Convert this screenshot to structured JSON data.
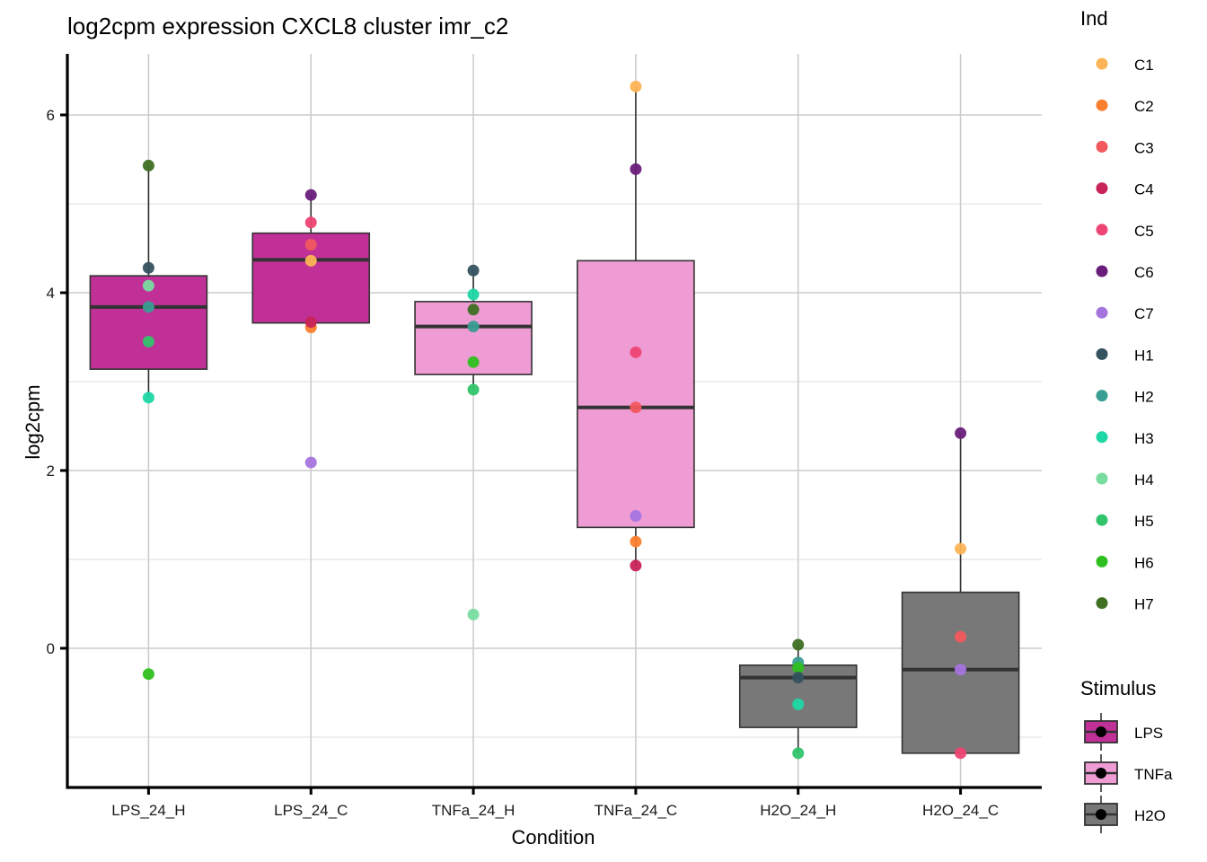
{
  "chart_data": {
    "type": "box",
    "title": "log2cpm expression CXCL8 cluster imr_c2",
    "xlabel": "Condition",
    "ylabel": "log2cpm",
    "ylim": [
      -1.55,
      6.7
    ],
    "yticks": [
      0,
      2,
      4,
      6
    ],
    "grid": true,
    "categories": [
      "LPS_24_H",
      "LPS_24_C",
      "TNFa_24_H",
      "TNFa_24_C",
      "H2O_24_H",
      "H2O_24_C"
    ],
    "boxes": [
      {
        "category": "LPS_24_H",
        "stimulus": "LPS",
        "whisker_low": 2.82,
        "q1": 3.14,
        "median": 3.84,
        "q3": 4.19,
        "whisker_high": 5.43
      },
      {
        "category": "LPS_24_C",
        "stimulus": "LPS",
        "whisker_low": 3.61,
        "q1": 3.66,
        "median": 4.37,
        "q3": 4.67,
        "whisker_high": 5.1
      },
      {
        "category": "TNFa_24_H",
        "stimulus": "TNFa",
        "whisker_low": 2.91,
        "q1": 3.08,
        "median": 3.62,
        "q3": 3.9,
        "whisker_high": 4.25
      },
      {
        "category": "TNFa_24_C",
        "stimulus": "TNFa",
        "whisker_low": 0.93,
        "q1": 1.36,
        "median": 2.71,
        "q3": 4.36,
        "whisker_high": 6.32
      },
      {
        "category": "H2O_24_H",
        "stimulus": "H2O",
        "whisker_low": -1.18,
        "q1": -0.89,
        "median": -0.33,
        "q3": -0.19,
        "whisker_high": 0.04
      },
      {
        "category": "H2O_24_C",
        "stimulus": "H2O",
        "whisker_low": -1.18,
        "q1": -1.18,
        "median": -0.24,
        "q3": 0.63,
        "whisker_high": 2.42
      }
    ],
    "points": [
      {
        "category": "LPS_24_H",
        "ind": "H7",
        "value": 5.43
      },
      {
        "category": "LPS_24_H",
        "ind": "H1",
        "value": 4.28
      },
      {
        "category": "LPS_24_H",
        "ind": "H4",
        "value": 4.08
      },
      {
        "category": "LPS_24_H",
        "ind": "H2",
        "value": 3.84
      },
      {
        "category": "LPS_24_H",
        "ind": "H5",
        "value": 3.45
      },
      {
        "category": "LPS_24_H",
        "ind": "H3",
        "value": 2.82
      },
      {
        "category": "LPS_24_H",
        "ind": "H6",
        "value": -0.29
      },
      {
        "category": "LPS_24_C",
        "ind": "C6",
        "value": 5.1
      },
      {
        "category": "LPS_24_C",
        "ind": "C5",
        "value": 4.79
      },
      {
        "category": "LPS_24_C",
        "ind": "C3",
        "value": 4.54
      },
      {
        "category": "LPS_24_C",
        "ind": "C1",
        "value": 4.36
      },
      {
        "category": "LPS_24_C",
        "ind": "C2",
        "value": 3.61
      },
      {
        "category": "LPS_24_C",
        "ind": "C4",
        "value": 3.67
      },
      {
        "category": "LPS_24_C",
        "ind": "C7",
        "value": 2.09
      },
      {
        "category": "TNFa_24_H",
        "ind": "H1",
        "value": 4.25
      },
      {
        "category": "TNFa_24_H",
        "ind": "H3",
        "value": 3.98
      },
      {
        "category": "TNFa_24_H",
        "ind": "H7",
        "value": 3.81
      },
      {
        "category": "TNFa_24_H",
        "ind": "H2",
        "value": 3.62
      },
      {
        "category": "TNFa_24_H",
        "ind": "H6",
        "value": 3.22
      },
      {
        "category": "TNFa_24_H",
        "ind": "H5",
        "value": 2.91
      },
      {
        "category": "TNFa_24_H",
        "ind": "H4",
        "value": 0.38
      },
      {
        "category": "TNFa_24_C",
        "ind": "C1",
        "value": 6.32
      },
      {
        "category": "TNFa_24_C",
        "ind": "C6",
        "value": 5.39
      },
      {
        "category": "TNFa_24_C",
        "ind": "C5",
        "value": 3.33
      },
      {
        "category": "TNFa_24_C",
        "ind": "C3",
        "value": 2.71
      },
      {
        "category": "TNFa_24_C",
        "ind": "C7",
        "value": 1.49
      },
      {
        "category": "TNFa_24_C",
        "ind": "C2",
        "value": 1.2
      },
      {
        "category": "TNFa_24_C",
        "ind": "C4",
        "value": 0.93
      },
      {
        "category": "H2O_24_H",
        "ind": "H7",
        "value": 0.04
      },
      {
        "category": "H2O_24_H",
        "ind": "H2",
        "value": -0.16
      },
      {
        "category": "H2O_24_H",
        "ind": "H6",
        "value": -0.22
      },
      {
        "category": "H2O_24_H",
        "ind": "H1",
        "value": -0.33
      },
      {
        "category": "H2O_24_H",
        "ind": "H3",
        "value": -0.63
      },
      {
        "category": "H2O_24_H",
        "ind": "H5",
        "value": -1.18
      },
      {
        "category": "H2O_24_C",
        "ind": "C6",
        "value": 2.42
      },
      {
        "category": "H2O_24_C",
        "ind": "C1",
        "value": 1.12
      },
      {
        "category": "H2O_24_C",
        "ind": "C3",
        "value": 0.13
      },
      {
        "category": "H2O_24_C",
        "ind": "C7",
        "value": -0.24
      },
      {
        "category": "H2O_24_C",
        "ind": "C5",
        "value": -1.18
      }
    ],
    "legend_ind": {
      "title": "Ind",
      "placement": "right",
      "entries": [
        {
          "label": "C1",
          "color": "#FDB456"
        },
        {
          "label": "C2",
          "color": "#FA7F2E"
        },
        {
          "label": "C3",
          "color": "#F2585E"
        },
        {
          "label": "C4",
          "color": "#C8245A"
        },
        {
          "label": "C5",
          "color": "#EE4574"
        },
        {
          "label": "C6",
          "color": "#6A1D7A"
        },
        {
          "label": "C7",
          "color": "#A574DF"
        },
        {
          "label": "H1",
          "color": "#35525F"
        },
        {
          "label": "H2",
          "color": "#399E93"
        },
        {
          "label": "H3",
          "color": "#1ED7A4"
        },
        {
          "label": "H4",
          "color": "#78DC9F"
        },
        {
          "label": "H5",
          "color": "#31C46C"
        },
        {
          "label": "H6",
          "color": "#2EC01E"
        },
        {
          "label": "H7",
          "color": "#3E6F23"
        }
      ]
    },
    "legend_stimulus": {
      "title": "Stimulus",
      "placement": "right-bottom",
      "entries": [
        {
          "label": "LPS",
          "color": "#C03097"
        },
        {
          "label": "TNFa",
          "color": "#F09CD4"
        },
        {
          "label": "H2O",
          "color": "#787878"
        }
      ]
    }
  }
}
